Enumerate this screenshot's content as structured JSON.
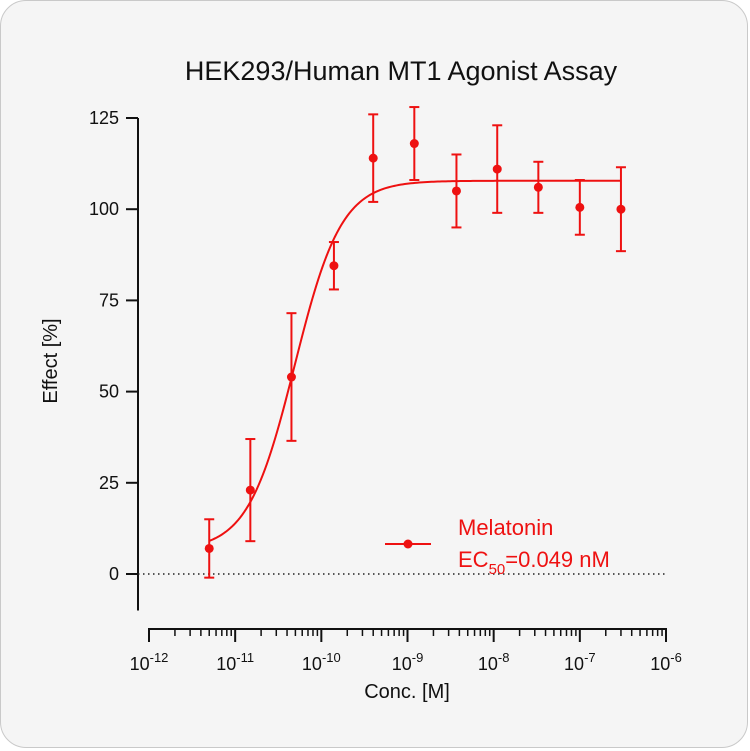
{
  "chart_data": {
    "type": "scatter",
    "title": "HEK293/Human MT1 Agonist Assay",
    "xlabel": "Conc. [M]",
    "ylabel": "Effect  [%]",
    "x_scale": "log",
    "xlim": [
      1e-12,
      1e-06
    ],
    "ylim": [
      -10,
      125
    ],
    "x_ticks": [
      "10-12",
      "10-11",
      "10-10",
      "10-9",
      "10-8",
      "10-7",
      "10-6"
    ],
    "y_ticks": [
      "0",
      "25",
      "50",
      "75",
      "100",
      "125"
    ],
    "y_tick_values": [
      0,
      25,
      50,
      75,
      100,
      125
    ],
    "series": [
      {
        "name": "Melatonin",
        "color": "#ee1111",
        "x": [
          5e-12,
          1.5e-11,
          4.5e-11,
          1.4e-10,
          4e-10,
          1.2e-09,
          3.7e-09,
          1.1e-08,
          3.3e-08,
          1e-07,
          3e-07
        ],
        "y": [
          7,
          23,
          54,
          84.5,
          114,
          118,
          105,
          111,
          106,
          100.5,
          100
        ],
        "error": [
          8,
          14,
          17.5,
          6.5,
          12,
          10,
          10,
          12,
          7,
          7.5,
          11.5
        ]
      }
    ],
    "fit": {
      "bottom": 6.5,
      "top": 107.8,
      "ec50": 4.9e-11,
      "hill": 1.6
    },
    "legend": {
      "entry": "Melatonin",
      "ec50_prefix": "EC",
      "ec50_sub": "50",
      "ec50_value": "=0.049 nM",
      "position": "bottom-right"
    },
    "zero_line": "dotted"
  }
}
